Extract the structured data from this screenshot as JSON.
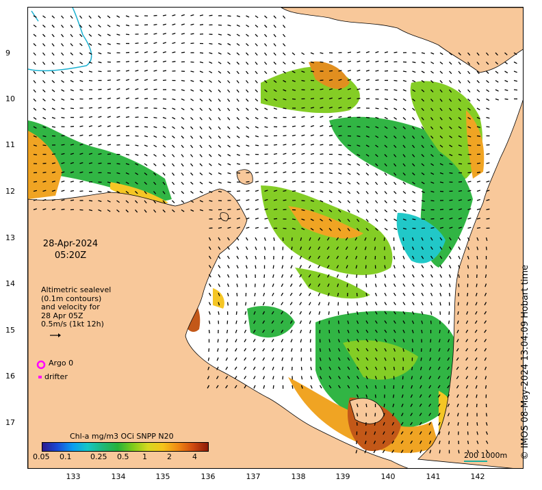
{
  "map": {
    "date": "28-Apr-2024",
    "time": "05:20Z",
    "altimetry_lines": [
      "Altimetric sealevel",
      "(0.1m contours)",
      "and velocity for",
      "28 Apr 05Z",
      "0.5m/s (1kt 12h)"
    ],
    "legend_argo": "Argo 0",
    "legend_drifter": "drifter",
    "colorbar_title": "Chl-a mg/m3 OCi SNPP N20",
    "colorbar_ticks": [
      "0.05",
      "0.1",
      "0.25",
      "0.5",
      "1",
      "2",
      "4"
    ],
    "credit": "© IMOS 08-May-2024 13:04:09 Hobart time",
    "scale_label": "200  1000m",
    "y_ticks": [
      "9",
      "10",
      "11",
      "12",
      "13",
      "14",
      "15",
      "16",
      "17"
    ],
    "x_ticks": [
      "133",
      "134",
      "135",
      "136",
      "137",
      "138",
      "139",
      "140",
      "141",
      "142"
    ],
    "colors": {
      "land": "#f8c89a",
      "ocean_nodata": "#ffffff",
      "chl_low": "#16c6c6",
      "chl_mid": "#26b23a",
      "chl_high": "#f5c41a",
      "chl_very_high": "#c0500c",
      "argo_marker": "#ff00ff",
      "shelf_contour": "#1ab0d0"
    }
  }
}
